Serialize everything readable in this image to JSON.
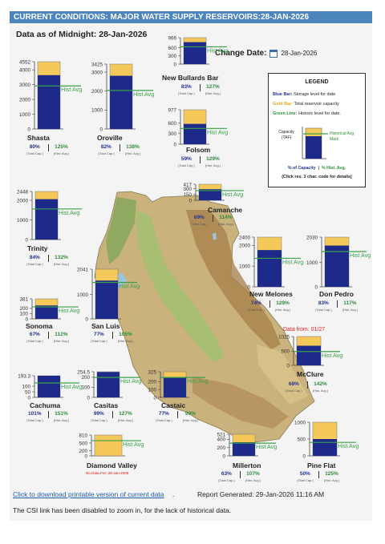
{
  "page": {
    "title": "CURRENT CONDITIONS: MAJOR WATER SUPPLY RESERVOIRS:28-JAN-2026",
    "subtitle": "Data as of Midnight: 28-Jan-2026",
    "change_date_label": "Change Date:",
    "change_date_value": "28-Jan-2026",
    "data_from_note": "Data from: 01/27",
    "download_link": "Click to download printable version of current data",
    "download_suffix": ".",
    "report_generated": "Report Generated: 29-Jan-2026 11:16 AM",
    "note": "The CSI link has been disabled to zoom in, for the lack of historical data."
  },
  "colors": {
    "storage": "#1e2a8a",
    "capacity": "#f5c85a",
    "hist": "#3aa04a",
    "header": "#4b85bb",
    "map_land": "#c8b27a",
    "map_water": "#9cc4dc"
  },
  "legend": {
    "title": "LEGEND",
    "items": [
      {
        "key": "Blue Bar:",
        "text": "Storage level for date",
        "color": "#23338f"
      },
      {
        "key": "Gold Bar:",
        "text": "Total reservoir capacity",
        "color": "#e0a81b"
      },
      {
        "key": "Green Line:",
        "text": "Historic level for date.",
        "color": "#2e8b3d"
      }
    ],
    "capacity_label": "Capacity (TAF)",
    "hist_label": "Historical Avg Mark",
    "pct_cap_label": "% of Capacity",
    "pct_hist_label": "% Hist. Avg.",
    "click_note": "(Click res. 3 char. code for details)"
  },
  "chart_data": {
    "type": "bar",
    "ylabel": "TAF",
    "hist_label": "Hist Avg",
    "cap_caption": "(Total Cap.)",
    "hist_caption": "(Hist. Avg.)",
    "reservoirs": [
      {
        "name": "Shasta",
        "capacity": 4552,
        "ticks": [
          "4552",
          "4000",
          "3000",
          "2000",
          "1000",
          "0"
        ],
        "storage": 3641,
        "hist_avg": 2913,
        "pct_cap": "80%",
        "pct_hist": "125%"
      },
      {
        "name": "Oroville",
        "capacity": 3425,
        "ticks": [
          "3425",
          "3000",
          "2000",
          "1000",
          "0"
        ],
        "storage": 2808,
        "hist_avg": 2035,
        "pct_cap": "82%",
        "pct_hist": "138%"
      },
      {
        "name": "New Bullards Bar",
        "capacity": 966,
        "ticks": [
          "966",
          "600",
          "300",
          "0"
        ],
        "storage": 802,
        "hist_avg": 631,
        "pct_cap": "83%",
        "pct_hist": "127%"
      },
      {
        "name": "Folsom",
        "capacity": 977,
        "ticks": [
          "977",
          "600",
          "300",
          "0"
        ],
        "storage": 576,
        "hist_avg": 447,
        "pct_cap": "59%",
        "pct_hist": "129%"
      },
      {
        "name": "Trinity",
        "capacity": 2448,
        "ticks": [
          "2448",
          "2000",
          "1000",
          "0"
        ],
        "storage": 2056,
        "hist_avg": 1558,
        "pct_cap": "84%",
        "pct_hist": "132%"
      },
      {
        "name": "Camanche",
        "capacity": 417,
        "ticks": [
          "417",
          "300",
          "150",
          "0"
        ],
        "storage": 288,
        "hist_avg": 252,
        "pct_cap": "69%",
        "pct_hist": "114%"
      },
      {
        "name": "New Melones",
        "capacity": 2400,
        "ticks": [
          "2400",
          "2000",
          "1000",
          "0"
        ],
        "storage": 1776,
        "hist_avg": 1377,
        "pct_cap": "74%",
        "pct_hist": "129%"
      },
      {
        "name": "Don Pedro",
        "capacity": 2030,
        "ticks": [
          "2030",
          "1000",
          "0"
        ],
        "storage": 1685,
        "hist_avg": 1440,
        "pct_cap": "83%",
        "pct_hist": "117%"
      },
      {
        "name": "Sonoma",
        "capacity": 381,
        "ticks": [
          "381",
          "200",
          "100",
          "0"
        ],
        "storage": 255,
        "hist_avg": 228,
        "pct_cap": "67%",
        "pct_hist": "112%"
      },
      {
        "name": "San Luis",
        "capacity": 2041,
        "ticks": [
          "2041",
          "1000",
          "0"
        ],
        "storage": 1572,
        "hist_avg": 1497,
        "pct_cap": "77%",
        "pct_hist": "105%"
      },
      {
        "name": "McClure",
        "capacity": 1025,
        "ticks": [
          "1025",
          "500",
          "0"
        ],
        "storage": 697,
        "hist_avg": 491,
        "pct_cap": "68%",
        "pct_hist": "142%"
      },
      {
        "name": "Cachuma",
        "capacity": 193.3,
        "ticks": [
          "193.3",
          "100",
          "50",
          "0"
        ],
        "storage": 195,
        "hist_avg": 129,
        "pct_cap": "101%",
        "pct_hist": "151%"
      },
      {
        "name": "Casitas",
        "capacity": 254.5,
        "ticks": [
          "254.5",
          "200",
          "100",
          "0"
        ],
        "storage": 252,
        "hist_avg": 198,
        "pct_cap": "99%",
        "pct_hist": "127%"
      },
      {
        "name": "Castaic",
        "capacity": 325,
        "ticks": [
          "325",
          "200",
          "100",
          "0"
        ],
        "storage": 250,
        "hist_avg": 253,
        "pct_cap": "77%",
        "pct_hist": "99%"
      },
      {
        "name": "Diamond Valley",
        "capacity": 810,
        "ticks": [
          "810",
          "500",
          "200",
          "0"
        ],
        "storage": 0,
        "hist_avg": 590,
        "pct_cap": "",
        "pct_hist": "",
        "no_data": "No Data For: 28-Jan-2026"
      },
      {
        "name": "Millerton",
        "capacity": 521,
        "ticks": [
          "521",
          "400",
          "200",
          "0"
        ],
        "storage": 328,
        "hist_avg": 307,
        "pct_cap": "63%",
        "pct_hist": "107%"
      },
      {
        "name": "Pine Flat",
        "capacity": 1000,
        "ticks": [
          "1000",
          "500",
          "0"
        ],
        "storage": 500,
        "hist_avg": 400,
        "pct_cap": "50%",
        "pct_hist": "125%"
      }
    ]
  }
}
